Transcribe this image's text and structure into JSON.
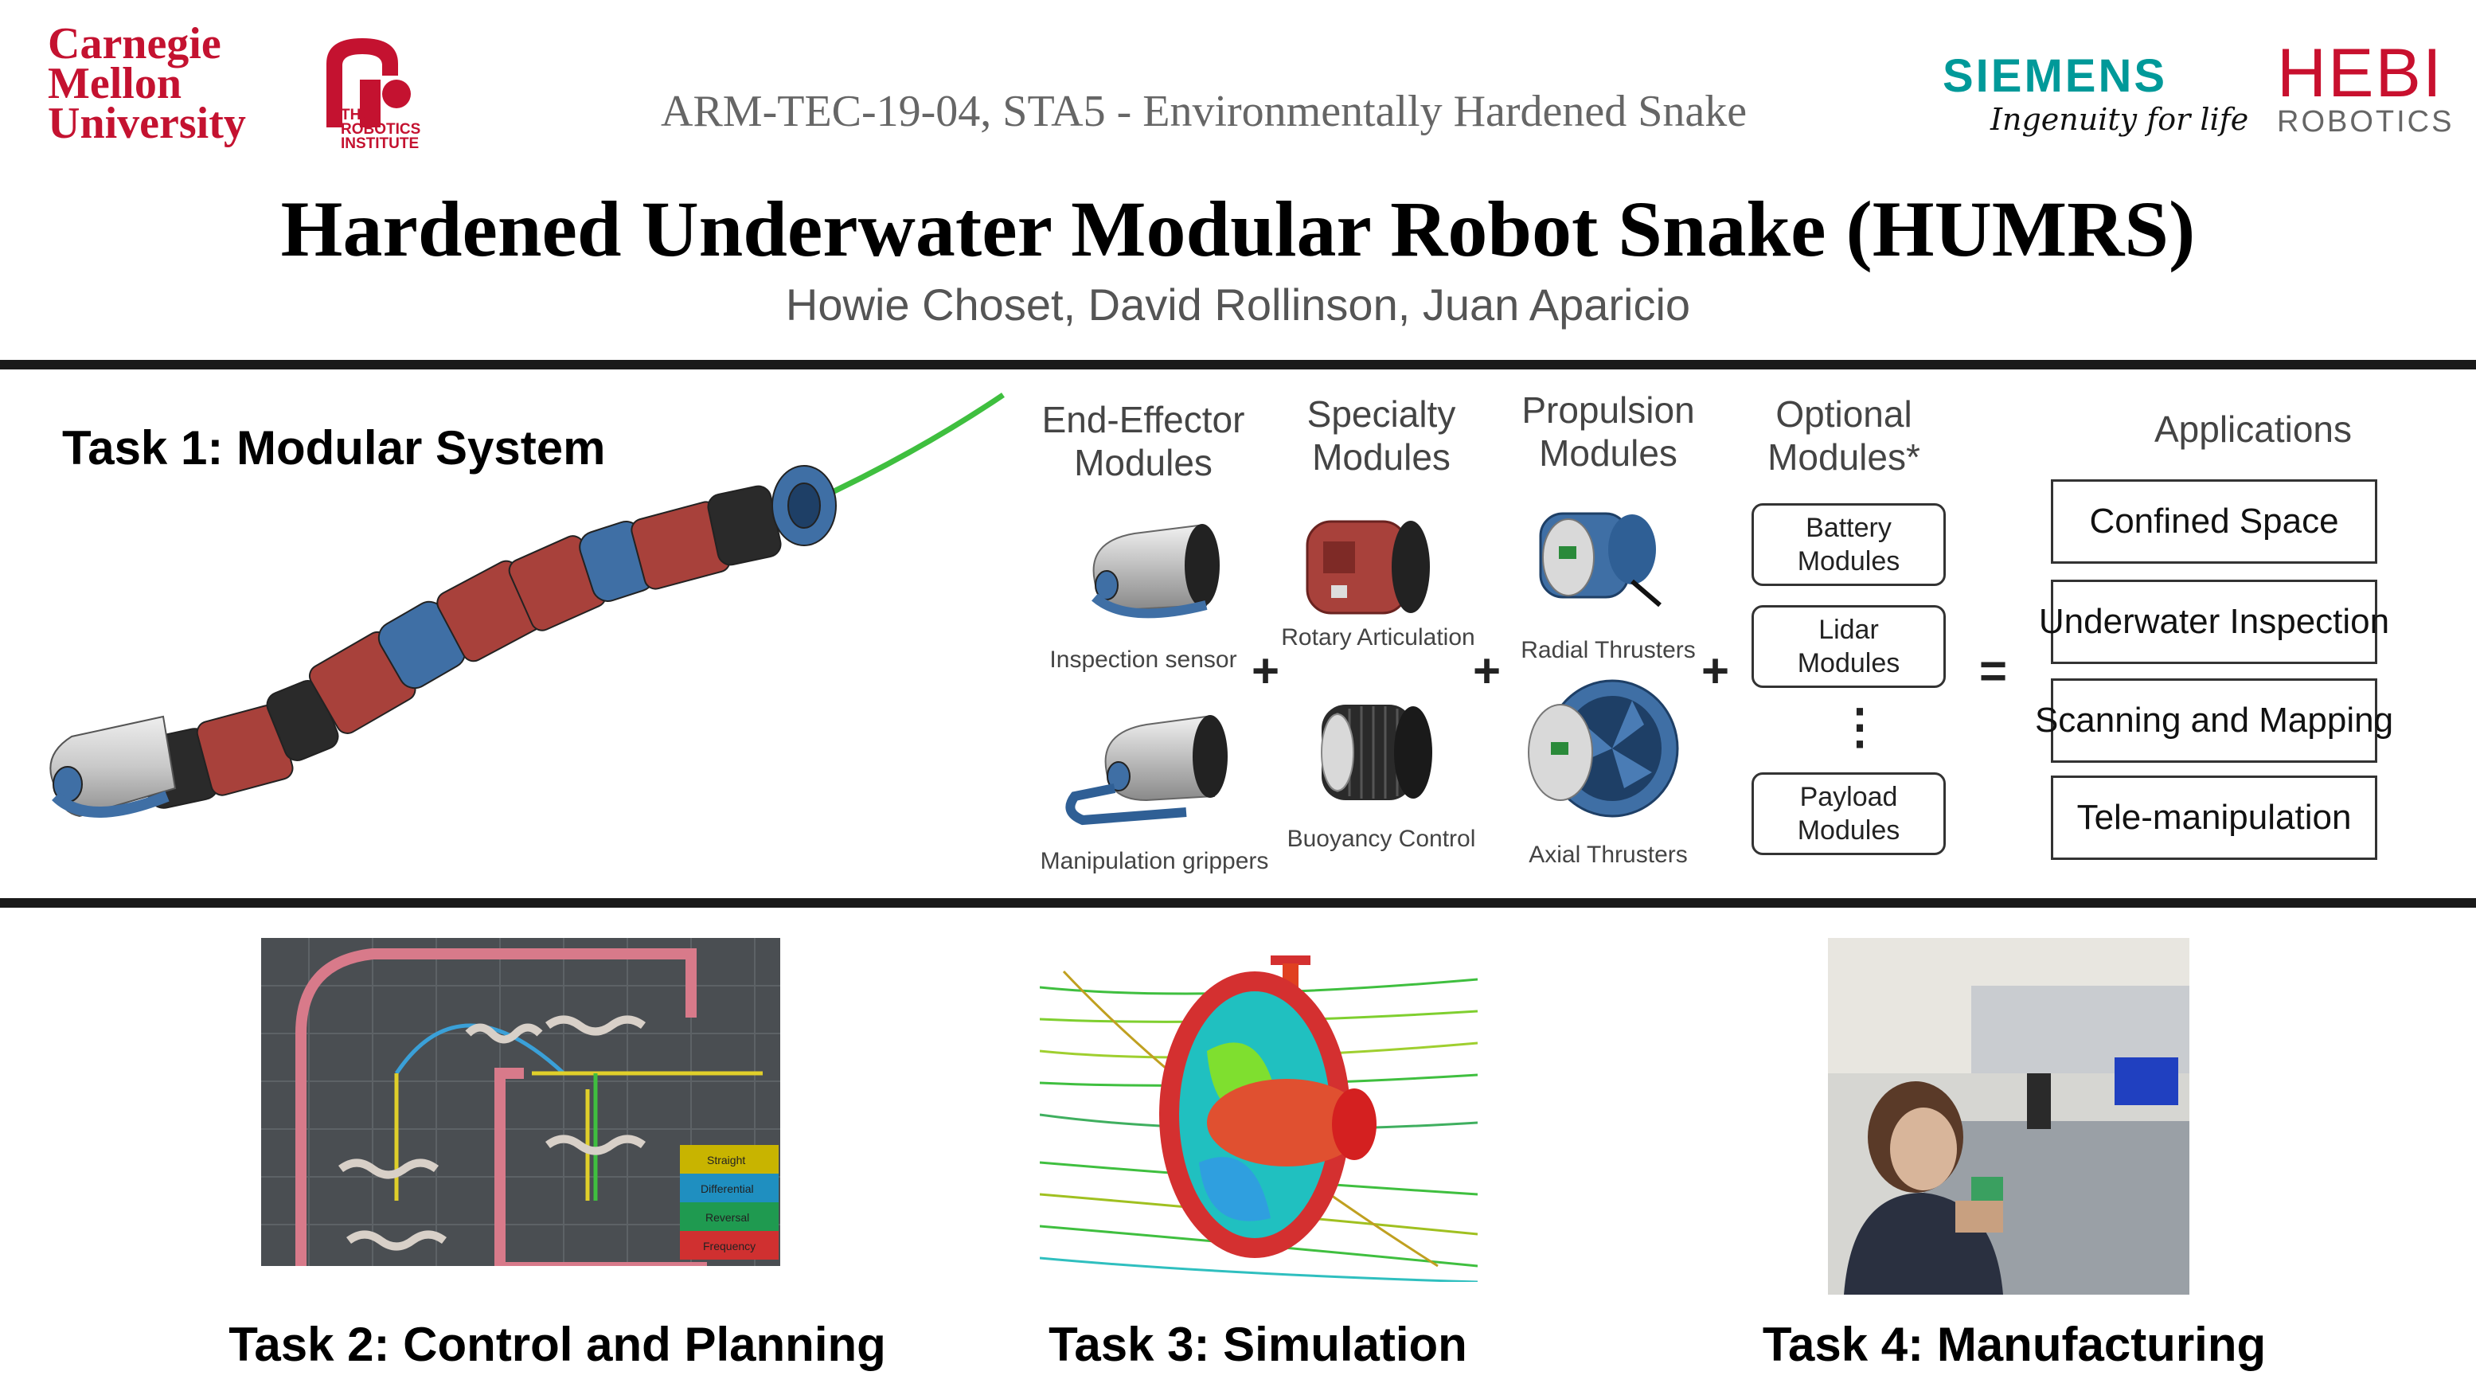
{
  "header": {
    "cmu_line1": "Carnegie",
    "cmu_line2": "Mellon",
    "cmu_line3": "University",
    "ri_line1": "THE",
    "ri_line2": "ROBOTICS",
    "ri_line3": "INSTITUTE",
    "subtitle": "ARM-TEC-19-04,  STA5 - Environmentally Hardened Snake",
    "siemens": "SIEMENS",
    "siemens_tagline": "Ingenuity for life",
    "hebi": "HEBI",
    "hebi_sub": "ROBOTICS",
    "title": "Hardened Underwater Modular Robot Snake (HUMRS)",
    "authors": "Howie Choset, David Rollinson, Juan Aparicio"
  },
  "task1": {
    "label": "Task 1: Modular System",
    "columns": {
      "end_effector": "End-Effector Modules",
      "specialty": "Specialty Modules",
      "propulsion": "Propulsion Modules",
      "optional": "Optional Modules*",
      "applications": "Applications"
    },
    "modules": {
      "inspection": "Inspection sensor",
      "manipulation": "Manipulation grippers",
      "rotary": "Rotary Articulation",
      "buoyancy": "Buoyancy Control",
      "radial": "Radial Thrusters",
      "axial": "Axial Thrusters"
    },
    "optional_boxes": [
      "Battery Modules",
      "Lidar Modules",
      "Payload Modules"
    ],
    "ellipsis": "⋮",
    "plus": "+",
    "equals": "=",
    "applications": [
      "Confined Space",
      "Underwater Inspection",
      "Scanning and Mapping",
      "Tele-manipulation"
    ]
  },
  "task2": {
    "label": "Task 2: Control and Planning",
    "legend": [
      "Straight",
      "Differential",
      "Reversal",
      "Frequency"
    ],
    "legend_colors": [
      "#c8b400",
      "#1f8fc0",
      "#1f9a50",
      "#d03030"
    ]
  },
  "task3": {
    "label": "Task 3: Simulation"
  },
  "task4": {
    "label": "Task 4: Manufacturing"
  },
  "colors": {
    "cmu_red": "#c41230",
    "siemens_teal": "#009999",
    "hebi_red": "#c8102e",
    "module_red": "#a8413b",
    "module_blue": "#3f6fa5"
  }
}
